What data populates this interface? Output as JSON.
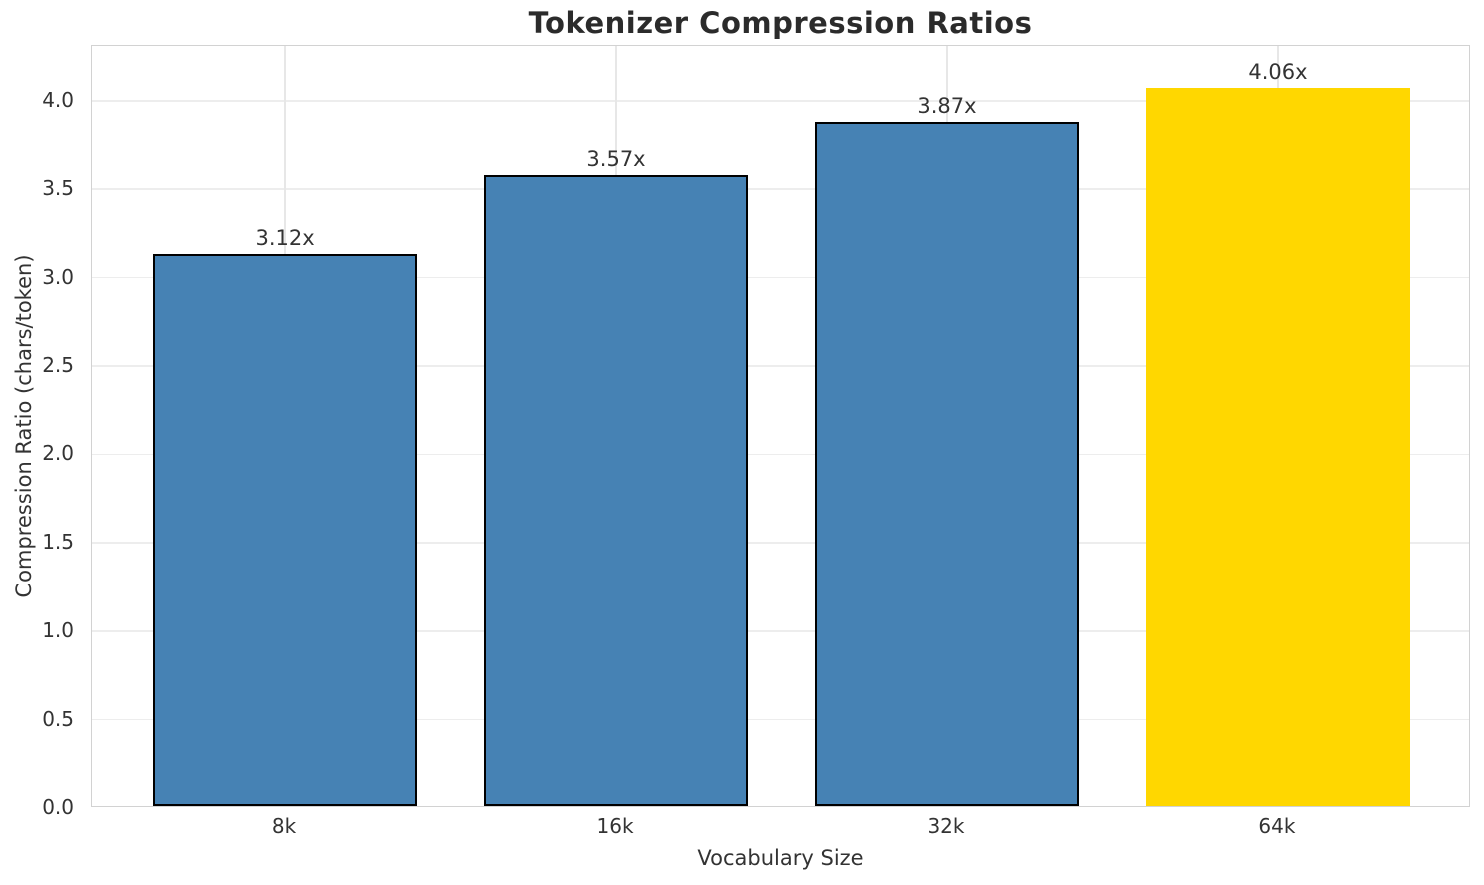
{
  "chart_data": {
    "type": "bar",
    "title": "Tokenizer Compression Ratios",
    "xlabel": "Vocabulary Size",
    "ylabel": "Compression Ratio (chars/token)",
    "categories": [
      "8k",
      "16k",
      "32k",
      "64k"
    ],
    "values": [
      3.12,
      3.57,
      3.87,
      4.06
    ],
    "value_labels": [
      "3.12x",
      "3.57x",
      "3.87x",
      "4.06x"
    ],
    "bar_colors": [
      "#4682B4",
      "#4682B4",
      "#4682B4",
      "#FFD700"
    ],
    "bar_edge_colors": [
      "#000000",
      "#000000",
      "#000000",
      "none"
    ],
    "highlight_index": 3,
    "highlight_color": "#FFD700",
    "base_color": "#4682B4",
    "yticks": [
      0.0,
      0.5,
      1.0,
      1.5,
      2.0,
      2.5,
      3.0,
      3.5,
      4.0
    ],
    "ytick_labels": [
      "0.0",
      "0.5",
      "1.0",
      "1.5",
      "2.0",
      "2.5",
      "3.0",
      "3.5",
      "4.0"
    ],
    "ylim": [
      0,
      4.31
    ],
    "grid": true,
    "grid_axes": "both",
    "legend_position": "none",
    "grid_color": "#ededed",
    "spine_color": "#d2d2d2",
    "text_color": "#333333",
    "title_color": "#2b2b2b"
  }
}
